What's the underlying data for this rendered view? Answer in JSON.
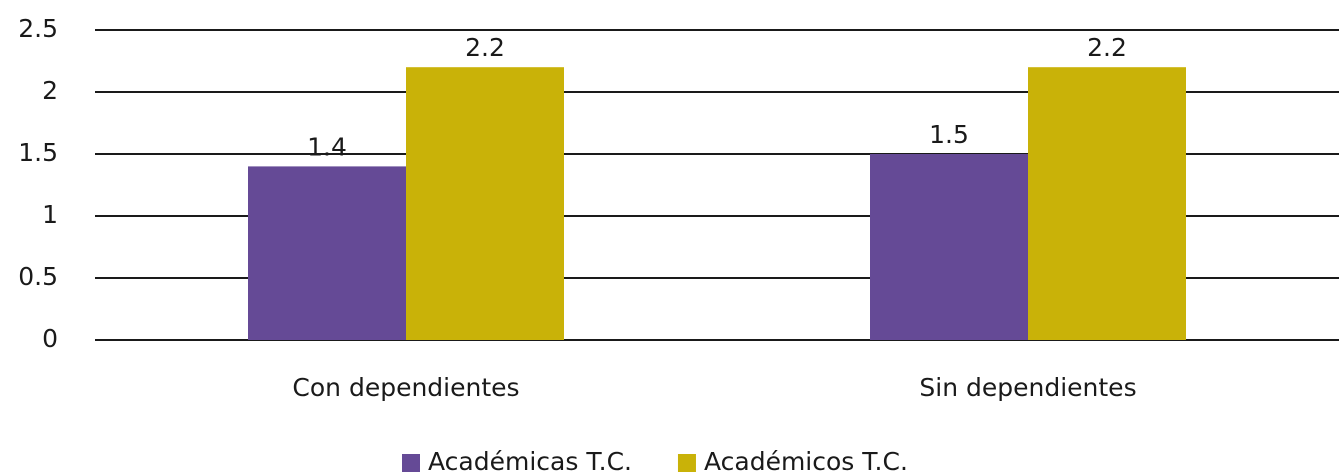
{
  "chart_data": {
    "type": "bar",
    "categories": [
      "Con dependientes",
      "Sin dependientes"
    ],
    "series": [
      {
        "name": "Académicas T.C.",
        "color": "#654a96",
        "values": [
          1.4,
          1.5
        ]
      },
      {
        "name": "Académicos T.C.",
        "color": "#c9b208",
        "values": [
          2.2,
          2.2
        ]
      }
    ],
    "ylim": [
      0,
      2.5
    ],
    "yticks": [
      0,
      0.5,
      1,
      1.5,
      2,
      2.5
    ],
    "grid": true,
    "legend": "bottom"
  }
}
